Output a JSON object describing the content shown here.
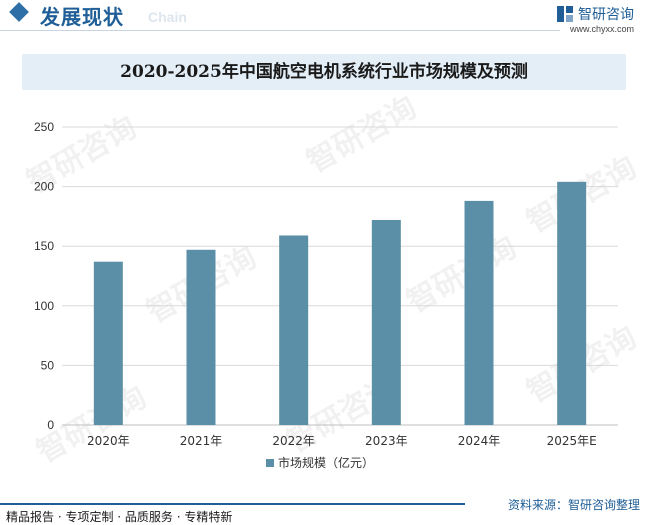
{
  "header": {
    "section_title": "发展现状",
    "watermark_text": "Chain",
    "brand_name": "智研咨询",
    "brand_url": "www.chyxx.com"
  },
  "watermark": "智研咨询",
  "chart_data": {
    "type": "bar",
    "title": "2020-2025年中国航空电机系统行业市场规模及预测",
    "categories": [
      "2020年",
      "2021年",
      "2022年",
      "2023年",
      "2024年",
      "2025年E"
    ],
    "series": [
      {
        "name": "市场规模（亿元）",
        "values": [
          137,
          147,
          159,
          172,
          188,
          204
        ]
      }
    ],
    "ylim": [
      0,
      250
    ],
    "yticks": [
      0,
      50,
      100,
      150,
      200,
      250
    ],
    "grid": true,
    "legend_position": "bottom",
    "bar_color": "#5b8fa8"
  },
  "footer": {
    "services": "精品报告 · 专项定制 · 品质服务 · 专精特新",
    "source": "资料来源：智研咨询整理"
  },
  "colors": {
    "accent": "#1f5e96",
    "bar": "#5b8fa8",
    "title_band": "#e4eef6"
  }
}
